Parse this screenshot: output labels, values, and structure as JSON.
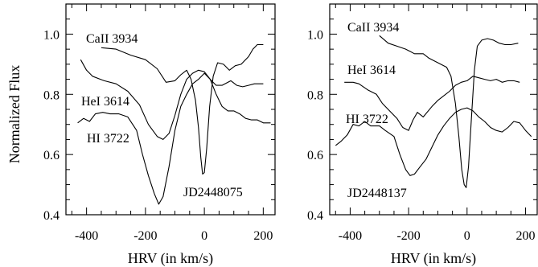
{
  "chart_data": [
    {
      "type": "line",
      "xlabel": "HRV (in km/s)",
      "ylabel": "Normalized Flux",
      "xlim": [
        -470,
        240
      ],
      "ylim": [
        0.4,
        1.1
      ],
      "x_ticks": [
        -400,
        -200,
        0,
        200
      ],
      "y_ticks": [
        0.4,
        0.6,
        0.8,
        1.0
      ],
      "annotations": [
        "CaII 3934",
        "HeI 3614",
        "HI 3722",
        "JD2448075"
      ],
      "series": [
        {
          "name": "CaII 3934",
          "points": [
            [
              -350,
              0.955
            ],
            [
              -300,
              0.95
            ],
            [
              -250,
              0.93
            ],
            [
              -200,
              0.915
            ],
            [
              -160,
              0.885
            ],
            [
              -130,
              0.84
            ],
            [
              -100,
              0.845
            ],
            [
              -80,
              0.865
            ],
            [
              -60,
              0.88
            ],
            [
              -45,
              0.85
            ],
            [
              -30,
              0.78
            ],
            [
              -20,
              0.69
            ],
            [
              -12,
              0.59
            ],
            [
              -6,
              0.535
            ],
            [
              0,
              0.54
            ],
            [
              8,
              0.62
            ],
            [
              18,
              0.76
            ],
            [
              30,
              0.86
            ],
            [
              45,
              0.905
            ],
            [
              65,
              0.9
            ],
            [
              85,
              0.88
            ],
            [
              105,
              0.895
            ],
            [
              125,
              0.9
            ],
            [
              150,
              0.925
            ],
            [
              165,
              0.95
            ],
            [
              180,
              0.965
            ],
            [
              200,
              0.965
            ]
          ]
        },
        {
          "name": "HeI 3614",
          "points": [
            [
              -420,
              0.915
            ],
            [
              -400,
              0.88
            ],
            [
              -380,
              0.86
            ],
            [
              -340,
              0.845
            ],
            [
              -300,
              0.835
            ],
            [
              -260,
              0.81
            ],
            [
              -220,
              0.765
            ],
            [
              -190,
              0.7
            ],
            [
              -160,
              0.66
            ],
            [
              -140,
              0.65
            ],
            [
              -120,
              0.67
            ],
            [
              -100,
              0.73
            ],
            [
              -80,
              0.8
            ],
            [
              -60,
              0.85
            ],
            [
              -40,
              0.87
            ],
            [
              -20,
              0.88
            ],
            [
              0,
              0.875
            ],
            [
              20,
              0.85
            ],
            [
              40,
              0.83
            ],
            [
              60,
              0.83
            ],
            [
              90,
              0.845
            ],
            [
              110,
              0.83
            ],
            [
              130,
              0.825
            ],
            [
              150,
              0.83
            ],
            [
              170,
              0.835
            ],
            [
              200,
              0.835
            ]
          ]
        },
        {
          "name": "HI 3722",
          "points": [
            [
              -430,
              0.705
            ],
            [
              -410,
              0.72
            ],
            [
              -390,
              0.71
            ],
            [
              -370,
              0.735
            ],
            [
              -345,
              0.74
            ],
            [
              -320,
              0.735
            ],
            [
              -290,
              0.735
            ],
            [
              -260,
              0.725
            ],
            [
              -230,
              0.68
            ],
            [
              -210,
              0.6
            ],
            [
              -190,
              0.53
            ],
            [
              -170,
              0.47
            ],
            [
              -155,
              0.435
            ],
            [
              -140,
              0.46
            ],
            [
              -120,
              0.56
            ],
            [
              -100,
              0.68
            ],
            [
              -80,
              0.76
            ],
            [
              -60,
              0.8
            ],
            [
              -40,
              0.835
            ],
            [
              -20,
              0.85
            ],
            [
              0,
              0.87
            ],
            [
              20,
              0.85
            ],
            [
              40,
              0.8
            ],
            [
              60,
              0.76
            ],
            [
              80,
              0.745
            ],
            [
              100,
              0.745
            ],
            [
              120,
              0.735
            ],
            [
              140,
              0.72
            ],
            [
              160,
              0.715
            ],
            [
              180,
              0.715
            ],
            [
              200,
              0.705
            ],
            [
              225,
              0.705
            ]
          ]
        }
      ]
    },
    {
      "type": "line",
      "xlabel": "HRV (in km/s)",
      "ylabel": "",
      "xlim": [
        -470,
        240
      ],
      "ylim": [
        0.4,
        1.1
      ],
      "x_ticks": [
        -400,
        -200,
        0,
        200
      ],
      "y_ticks": [
        0.4,
        0.6,
        0.8,
        1.0
      ],
      "annotations": [
        "CaII 3934",
        "HeI 3614",
        "HI 3722",
        "JD2448137"
      ],
      "series": [
        {
          "name": "CaII 3934",
          "points": [
            [
              -300,
              0.995
            ],
            [
              -270,
              0.97
            ],
            [
              -240,
              0.96
            ],
            [
              -210,
              0.95
            ],
            [
              -180,
              0.935
            ],
            [
              -150,
              0.935
            ],
            [
              -130,
              0.92
            ],
            [
              -110,
              0.91
            ],
            [
              -90,
              0.9
            ],
            [
              -70,
              0.89
            ],
            [
              -55,
              0.86
            ],
            [
              -40,
              0.77
            ],
            [
              -28,
              0.66
            ],
            [
              -18,
              0.55
            ],
            [
              -10,
              0.5
            ],
            [
              -3,
              0.49
            ],
            [
              5,
              0.56
            ],
            [
              15,
              0.72
            ],
            [
              25,
              0.88
            ],
            [
              35,
              0.96
            ],
            [
              50,
              0.98
            ],
            [
              70,
              0.985
            ],
            [
              90,
              0.98
            ],
            [
              110,
              0.97
            ],
            [
              130,
              0.965
            ],
            [
              150,
              0.965
            ],
            [
              175,
              0.97
            ]
          ]
        },
        {
          "name": "HeI 3614",
          "points": [
            [
              -420,
              0.84
            ],
            [
              -390,
              0.84
            ],
            [
              -370,
              0.835
            ],
            [
              -340,
              0.815
            ],
            [
              -310,
              0.8
            ],
            [
              -290,
              0.77
            ],
            [
              -260,
              0.74
            ],
            [
              -240,
              0.72
            ],
            [
              -220,
              0.69
            ],
            [
              -200,
              0.68
            ],
            [
              -185,
              0.715
            ],
            [
              -170,
              0.74
            ],
            [
              -150,
              0.725
            ],
            [
              -120,
              0.76
            ],
            [
              -100,
              0.78
            ],
            [
              -80,
              0.795
            ],
            [
              -60,
              0.81
            ],
            [
              -40,
              0.83
            ],
            [
              -20,
              0.84
            ],
            [
              0,
              0.845
            ],
            [
              20,
              0.86
            ],
            [
              40,
              0.855
            ],
            [
              60,
              0.85
            ],
            [
              80,
              0.845
            ],
            [
              100,
              0.85
            ],
            [
              120,
              0.84
            ],
            [
              140,
              0.845
            ],
            [
              160,
              0.845
            ],
            [
              180,
              0.84
            ]
          ]
        },
        {
          "name": "HI 3722",
          "points": [
            [
              -450,
              0.63
            ],
            [
              -430,
              0.645
            ],
            [
              -410,
              0.665
            ],
            [
              -390,
              0.7
            ],
            [
              -370,
              0.695
            ],
            [
              -350,
              0.71
            ],
            [
              -330,
              0.695
            ],
            [
              -300,
              0.695
            ],
            [
              -280,
              0.68
            ],
            [
              -250,
              0.66
            ],
            [
              -230,
              0.6
            ],
            [
              -210,
              0.55
            ],
            [
              -195,
              0.53
            ],
            [
              -180,
              0.535
            ],
            [
              -160,
              0.56
            ],
            [
              -140,
              0.585
            ],
            [
              -120,
              0.625
            ],
            [
              -100,
              0.665
            ],
            [
              -80,
              0.695
            ],
            [
              -60,
              0.72
            ],
            [
              -40,
              0.74
            ],
            [
              -20,
              0.75
            ],
            [
              0,
              0.755
            ],
            [
              20,
              0.745
            ],
            [
              40,
              0.725
            ],
            [
              60,
              0.71
            ],
            [
              80,
              0.69
            ],
            [
              100,
              0.68
            ],
            [
              120,
              0.675
            ],
            [
              140,
              0.69
            ],
            [
              160,
              0.71
            ],
            [
              180,
              0.705
            ],
            [
              200,
              0.68
            ],
            [
              220,
              0.66
            ]
          ]
        }
      ]
    }
  ]
}
